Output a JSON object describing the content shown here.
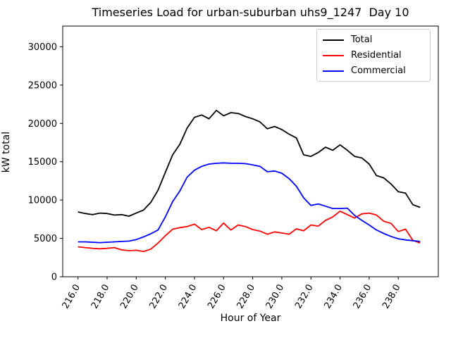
{
  "figure": {
    "title": "Timeseries Load for urban-suburban uhs9_1247  Day 10",
    "xlabel": "Hour of Year",
    "ylabel": "kW total"
  },
  "chart_data": {
    "type": "line",
    "title": "Timeseries Load for urban-suburban uhs9_1247  Day 10",
    "xlabel": "Hour of Year",
    "ylabel": "kW total",
    "grid": false,
    "legend_position": "upper right",
    "xlim": [
      214.95,
      240.75
    ],
    "ylim": [
      0,
      32700
    ],
    "xticks": [
      216,
      218,
      220,
      222,
      224,
      226,
      228,
      230,
      232,
      234,
      236,
      238
    ],
    "xtick_labels": [
      "216.0",
      "218.0",
      "220.0",
      "222.0",
      "224.0",
      "226.0",
      "228.0",
      "230.0",
      "232.0",
      "234.0",
      "236.0",
      "238.0"
    ],
    "yticks": [
      0,
      5000,
      10000,
      15000,
      20000,
      25000,
      30000
    ],
    "ytick_labels": [
      "0",
      "5000",
      "10000",
      "15000",
      "20000",
      "25000",
      "30000"
    ],
    "x": [
      216.0,
      216.5,
      217.0,
      217.5,
      218.0,
      218.5,
      219.0,
      219.5,
      220.0,
      220.5,
      221.0,
      221.5,
      222.0,
      222.5,
      223.0,
      223.5,
      224.0,
      224.5,
      225.0,
      225.5,
      226.0,
      226.5,
      227.0,
      227.5,
      228.0,
      228.5,
      229.0,
      229.5,
      230.0,
      230.5,
      231.0,
      231.5,
      232.0,
      232.5,
      233.0,
      233.5,
      234.0,
      234.5,
      235.0,
      235.5,
      236.0,
      236.5,
      237.0,
      237.5,
      238.0,
      238.5,
      239.0,
      239.5
    ],
    "series": [
      {
        "name": "Total",
        "color": "#000000",
        "values": [
          8450,
          8250,
          8100,
          8300,
          8250,
          8050,
          8100,
          7900,
          8300,
          8700,
          9700,
          11300,
          13600,
          15900,
          17300,
          19400,
          20800,
          21100,
          20600,
          21700,
          21000,
          21400,
          21300,
          20900,
          20600,
          20200,
          19300,
          19600,
          19200,
          18600,
          18100,
          15900,
          15700,
          16200,
          16900,
          16500,
          17200,
          16500,
          15700,
          15500,
          14700,
          13200,
          12900,
          12100,
          11100,
          10900,
          9400,
          9050
        ]
      },
      {
        "name": "Residential",
        "color": "#ff0000",
        "values": [
          3900,
          3800,
          3700,
          3650,
          3700,
          3800,
          3500,
          3400,
          3450,
          3300,
          3600,
          4400,
          5350,
          6200,
          6400,
          6550,
          6850,
          6150,
          6450,
          6000,
          7000,
          6100,
          6750,
          6550,
          6150,
          5950,
          5550,
          5850,
          5700,
          5550,
          6250,
          6000,
          6750,
          6600,
          7350,
          7800,
          8550,
          8100,
          7650,
          8200,
          8300,
          8050,
          7250,
          6950,
          5900,
          6200,
          4750,
          4400
        ]
      },
      {
        "name": "Commercial",
        "color": "#0000ff",
        "values": [
          4550,
          4550,
          4500,
          4450,
          4500,
          4550,
          4600,
          4650,
          4850,
          5200,
          5600,
          6100,
          7800,
          9800,
          11200,
          13000,
          13900,
          14400,
          14700,
          14800,
          14850,
          14800,
          14800,
          14750,
          14600,
          14400,
          13700,
          13800,
          13500,
          12800,
          11800,
          10300,
          9300,
          9500,
          9200,
          8900,
          8900,
          8950,
          8000,
          7350,
          6750,
          6100,
          5650,
          5250,
          4950,
          4800,
          4700,
          4600
        ]
      }
    ]
  }
}
